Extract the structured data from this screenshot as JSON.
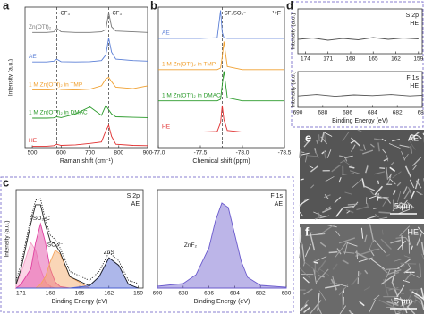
{
  "chart_data": [
    {
      "type": "line",
      "panel": "a",
      "xlabel": "Raman shift (cm⁻¹)",
      "ylabel": "Intensity (a.u.)",
      "xlim": [
        475,
        900
      ],
      "xticks": [
        500,
        600,
        700,
        800,
        900
      ],
      "ylim": [
        0,
        5
      ],
      "markers": [
        {
          "x": 585,
          "label": "-CF₃"
        },
        {
          "x": 765,
          "label": "-CF₃"
        }
      ],
      "x": [
        500,
        550,
        575,
        585,
        600,
        650,
        700,
        740,
        755,
        765,
        775,
        790,
        850,
        900
      ],
      "series": [
        {
          "name": "Zn(OTf)₂",
          "color": "#777777",
          "values": [
            4.1,
            4.1,
            4.12,
            4.25,
            4.12,
            4.1,
            4.1,
            4.12,
            4.2,
            4.8,
            4.3,
            4.15,
            4.12,
            4.1
          ]
        },
        {
          "name": "AE",
          "color": "#5b7fd6",
          "values": [
            3.05,
            3.05,
            3.08,
            3.15,
            3.06,
            3.05,
            3.06,
            3.1,
            3.3,
            3.9,
            3.4,
            3.15,
            3.1,
            3.08
          ]
        },
        {
          "name": "1 M Zn(OTf)₂ in TMP",
          "color": "#f0a030",
          "values": [
            2.05,
            2.05,
            2.07,
            2.1,
            2.07,
            2.05,
            2.08,
            2.2,
            2.45,
            2.5,
            2.35,
            2.15,
            2.1,
            2.2
          ]
        },
        {
          "name": "1 M Zn(OTf)₂ in DMAC",
          "color": "#2a9a2a",
          "values": [
            1.05,
            1.05,
            1.06,
            1.1,
            1.07,
            1.2,
            1.45,
            1.15,
            1.5,
            1.35,
            1.2,
            1.1,
            1.08,
            1.07
          ]
        },
        {
          "name": "HE",
          "color": "#e03030",
          "values": [
            0.05,
            0.05,
            0.07,
            0.12,
            0.08,
            0.1,
            0.15,
            0.2,
            0.6,
            0.8,
            0.4,
            0.12,
            0.08,
            0.07
          ]
        }
      ]
    },
    {
      "type": "line",
      "panel": "b",
      "xlabel": "Chemical shift (ppm)",
      "corner": [
        "¹⁹F"
      ],
      "xlim": [
        -77.0,
        -78.5
      ],
      "xticks": [
        {
          "value": -77.0,
          "label": "-77.0"
        },
        -77.5,
        {
          "value": -78.0,
          "label": "-78.0"
        },
        -78.5
      ],
      "ylim": [
        0.5,
        5
      ],
      "markers": [
        {
          "x": -77.76,
          "label": "CF₃SO₃⁻"
        }
      ],
      "x": [
        -77.0,
        -77.5,
        -77.7,
        -77.74,
        -77.76,
        -77.78,
        -77.82,
        -78.0,
        -78.5
      ],
      "series": [
        {
          "name": "AE",
          "color": "#5b7fd6",
          "values": [
            4,
            4,
            4.02,
            4.9,
            4.2,
            4.02,
            4,
            4,
            4
          ]
        },
        {
          "name": "1 M Zn(OTf)₂ in TMP",
          "color": "#f0a030",
          "values": [
            3,
            3,
            3,
            3.05,
            3.4,
            3.9,
            3.1,
            3,
            3
          ]
        },
        {
          "name": "1 M Zn(OTf)₂ in DMAC",
          "color": "#2a9a2a",
          "values": [
            2,
            2,
            2,
            2.05,
            2.5,
            2.95,
            2.1,
            2,
            2
          ]
        },
        {
          "name": "HE",
          "color": "#e03030",
          "values": [
            1,
            1,
            1.02,
            1.3,
            1.85,
            1.4,
            1.05,
            1,
            1
          ]
        }
      ]
    },
    {
      "type": "line",
      "panel": "c",
      "xlabel": "Binding Energy (eV)",
      "ylabel": "Intensity (a.u.)",
      "corner": [
        "S 2p",
        "AE"
      ],
      "xlim": [
        171.5,
        158.5
      ],
      "xticks": [
        171,
        168,
        165,
        162,
        159
      ],
      "ylim": [
        0,
        1.3
      ],
      "x": [
        171.5,
        171,
        170,
        169.5,
        169,
        168.5,
        168,
        167.5,
        167,
        166,
        164,
        163,
        162,
        161,
        160,
        159
      ],
      "series": [
        {
          "color": "#f6a0c8",
          "fill": true,
          "values": [
            0.05,
            0.2,
            0.6,
            0.5,
            0.25,
            0.08,
            0.02,
            0,
            0,
            0,
            0,
            0,
            0,
            0,
            0,
            0
          ]
        },
        {
          "name": "-SO₃-C",
          "color": "#e040a0",
          "fill": true,
          "values": [
            0,
            0.05,
            0.25,
            0.6,
            0.85,
            0.6,
            0.25,
            0.08,
            0.02,
            0,
            0,
            0,
            0,
            0,
            0,
            0
          ]
        },
        {
          "name": "SO₃²⁻",
          "color": "#f4a460",
          "fill": true,
          "values": [
            0,
            0,
            0,
            0,
            0.05,
            0.15,
            0.35,
            0.5,
            0.45,
            0.15,
            0,
            0,
            0,
            0,
            0,
            0
          ]
        },
        {
          "name": "ZnS",
          "color": "#4a5fd0",
          "fill": true,
          "values": [
            0,
            0,
            0,
            0,
            0,
            0,
            0,
            0,
            0,
            0,
            0.03,
            0.15,
            0.4,
            0.3,
            0.05,
            0
          ]
        },
        {
          "color": "#222222",
          "values": [
            0.05,
            0.25,
            0.85,
            1.1,
            1.1,
            0.83,
            0.62,
            0.58,
            0.47,
            0.15,
            0.03,
            0.15,
            0.4,
            0.3,
            0.05,
            0
          ]
        },
        {
          "color": "#000000",
          "dotted": true,
          "values": [
            0.1,
            0.32,
            0.92,
            1.16,
            1.18,
            0.9,
            0.7,
            0.64,
            0.53,
            0.22,
            0.1,
            0.22,
            0.47,
            0.36,
            0.1,
            0.06
          ]
        }
      ]
    },
    {
      "type": "line",
      "panel": "",
      "xlabel": "Binding Energy (eV)",
      "corner": [
        "F 1s",
        "AE"
      ],
      "xlim": [
        690,
        680
      ],
      "xticks": [
        690,
        688,
        686,
        684,
        682,
        680
      ],
      "ylim": [
        0,
        1.1
      ],
      "x": [
        690,
        688,
        687,
        686,
        685.5,
        685,
        684.5,
        684,
        683.5,
        683,
        682,
        680
      ],
      "series": [
        {
          "name": "ZnF₂",
          "color": "#6a5acd",
          "fill": true,
          "values": [
            0.02,
            0.05,
            0.15,
            0.45,
            0.75,
            0.95,
            0.9,
            0.6,
            0.3,
            0.12,
            0.03,
            0.01
          ]
        }
      ]
    },
    {
      "type": "line",
      "panel": "d",
      "ylabel": "Intensity (a.u.)",
      "corner": [
        "S 2p",
        "HE"
      ],
      "xlim": [
        175,
        158.5
      ],
      "xticks": [
        174,
        171,
        168,
        165,
        162,
        159
      ],
      "ylim": [
        0,
        1
      ],
      "x": [
        175,
        173,
        171,
        169,
        167,
        165,
        163,
        161,
        159
      ],
      "series": [
        {
          "color": "#555555",
          "values": [
            0.32,
            0.35,
            0.3,
            0.34,
            0.31,
            0.36,
            0.32,
            0.35,
            0.33
          ]
        }
      ]
    },
    {
      "type": "line",
      "panel": "",
      "xlabel": "Binding Energy (eV)",
      "ylabel": "Intensity (a.u.)",
      "corner": [
        "F 1s",
        "HE"
      ],
      "xlim": [
        690,
        680
      ],
      "xticks": [
        690,
        688,
        686,
        684,
        682,
        680
      ],
      "ylim": [
        0,
        1
      ],
      "x": [
        690,
        688.5,
        687,
        685.5,
        684,
        682.5,
        681,
        680
      ],
      "series": [
        {
          "color": "#555555",
          "values": [
            0.32,
            0.36,
            0.31,
            0.35,
            0.33,
            0.36,
            0.32,
            0.34
          ]
        }
      ]
    }
  ],
  "images": [
    {
      "panel": "e",
      "label": "AE",
      "scale": "5 μm"
    },
    {
      "panel": "f",
      "label": "HE",
      "scale": "5 μm"
    }
  ]
}
